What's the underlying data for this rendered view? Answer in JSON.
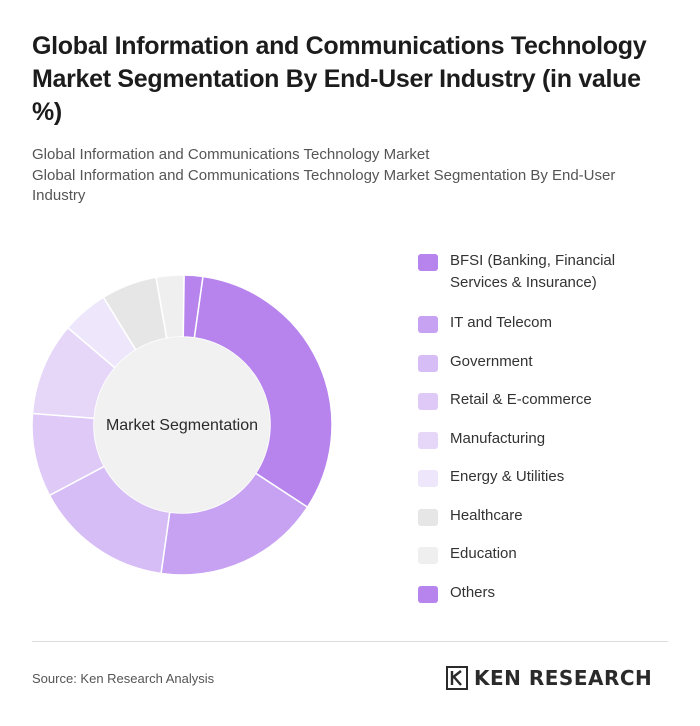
{
  "header": {
    "title": "Global Information and Communications Technology Market Segmentation By End-User Industry (in value %)",
    "subtitle_1": "Global Information and Communications Technology Market",
    "subtitle_2": "Global Information and Communications Technology Market Segmentation By End-User Industry"
  },
  "chart_data": {
    "type": "pie",
    "center_label": "Market Segmentation",
    "categories": [
      "BFSI (Banking, Financial Services & Insurance)",
      "IT and Telecom",
      "Government",
      "Retail & E-commerce",
      "Manufacturing",
      "Energy & Utilities",
      "Healthcare",
      "Education",
      "Others"
    ],
    "values": [
      32,
      18,
      15,
      9,
      10,
      5,
      6,
      3,
      2
    ],
    "colors": [
      "#b784ee",
      "#c7a2f2",
      "#d7bdf6",
      "#dfcaf7",
      "#e6d7f9",
      "#eee7fb",
      "#e6e6e6",
      "#efefef",
      "#b784ee"
    ],
    "legend_position": "right"
  },
  "footer": {
    "source": "Source: Ken Research Analysis",
    "logo_text": "KEN RESEARCH"
  }
}
